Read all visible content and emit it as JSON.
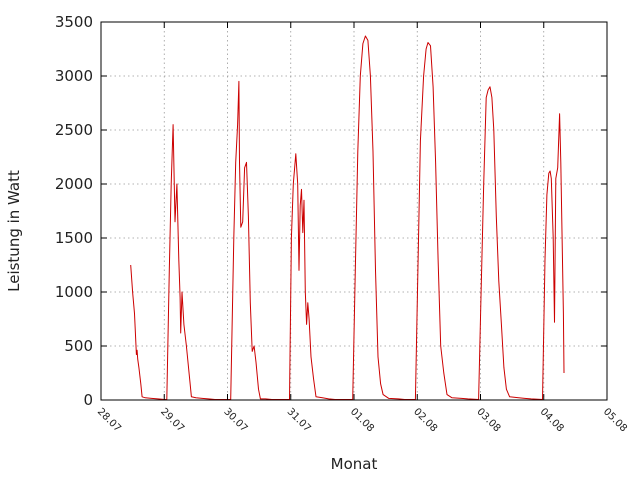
{
  "chart_data": {
    "type": "line",
    "title": "",
    "xlabel": "Monat",
    "ylabel": "Leistung in Watt",
    "ylim": [
      0,
      3500
    ],
    "xlim": [
      0,
      8
    ],
    "yticks": [
      0,
      500,
      1000,
      1500,
      2000,
      2500,
      3000,
      3500
    ],
    "xticks": [
      {
        "value": 0,
        "label": "28.07"
      },
      {
        "value": 1,
        "label": "29.07"
      },
      {
        "value": 2,
        "label": "30.07"
      },
      {
        "value": 3,
        "label": "31.07"
      },
      {
        "value": 4,
        "label": "01.08"
      },
      {
        "value": 5,
        "label": "02.08"
      },
      {
        "value": 6,
        "label": "03.08"
      },
      {
        "value": 7,
        "label": "04.08"
      },
      {
        "value": 8,
        "label": "05.08"
      }
    ],
    "grid": true,
    "line_color": "#cc0000",
    "series": [
      {
        "points": [
          [
            0.47,
            1250
          ],
          [
            0.5,
            1000
          ],
          [
            0.53,
            800
          ],
          [
            0.56,
            420
          ],
          [
            0.57,
            460
          ],
          [
            0.58,
            380
          ],
          [
            0.6,
            300
          ],
          [
            0.63,
            150
          ],
          [
            0.65,
            30
          ],
          [
            0.7,
            20
          ],
          [
            0.8,
            15
          ],
          [
            0.9,
            10
          ],
          [
            1.0,
            5
          ],
          [
            1.04,
            5
          ],
          [
            1.08,
            1200
          ],
          [
            1.11,
            2000
          ],
          [
            1.14,
            2550
          ],
          [
            1.17,
            1650
          ],
          [
            1.2,
            2000
          ],
          [
            1.23,
            1300
          ],
          [
            1.25,
            950
          ],
          [
            1.26,
            620
          ],
          [
            1.28,
            1000
          ],
          [
            1.31,
            700
          ],
          [
            1.35,
            500
          ],
          [
            1.4,
            200
          ],
          [
            1.43,
            30
          ],
          [
            1.5,
            20
          ],
          [
            1.6,
            15
          ],
          [
            1.7,
            10
          ],
          [
            1.8,
            5
          ],
          [
            2.05,
            5
          ],
          [
            2.1,
            1500
          ],
          [
            2.13,
            2200
          ],
          [
            2.16,
            2550
          ],
          [
            2.18,
            2950
          ],
          [
            2.19,
            2200
          ],
          [
            2.21,
            1600
          ],
          [
            2.24,
            1650
          ],
          [
            2.27,
            2150
          ],
          [
            2.3,
            2200
          ],
          [
            2.33,
            1700
          ],
          [
            2.36,
            900
          ],
          [
            2.39,
            450
          ],
          [
            2.42,
            500
          ],
          [
            2.45,
            350
          ],
          [
            2.49,
            100
          ],
          [
            2.52,
            10
          ],
          [
            2.6,
            10
          ],
          [
            2.7,
            5
          ],
          [
            2.98,
            5
          ],
          [
            3.01,
            1500
          ],
          [
            3.04,
            2000
          ],
          [
            3.08,
            2280
          ],
          [
            3.11,
            2000
          ],
          [
            3.13,
            1200
          ],
          [
            3.15,
            1800
          ],
          [
            3.17,
            1950
          ],
          [
            3.19,
            1550
          ],
          [
            3.21,
            1850
          ],
          [
            3.23,
            1000
          ],
          [
            3.25,
            700
          ],
          [
            3.27,
            900
          ],
          [
            3.29,
            750
          ],
          [
            3.32,
            400
          ],
          [
            3.36,
            200
          ],
          [
            3.4,
            30
          ],
          [
            3.5,
            20
          ],
          [
            3.6,
            10
          ],
          [
            3.7,
            5
          ],
          [
            3.98,
            5
          ],
          [
            4.02,
            1200
          ],
          [
            4.06,
            2300
          ],
          [
            4.1,
            3000
          ],
          [
            4.14,
            3300
          ],
          [
            4.18,
            3370
          ],
          [
            4.22,
            3330
          ],
          [
            4.26,
            3000
          ],
          [
            4.3,
            2300
          ],
          [
            4.34,
            1200
          ],
          [
            4.38,
            400
          ],
          [
            4.42,
            150
          ],
          [
            4.46,
            50
          ],
          [
            4.55,
            15
          ],
          [
            4.7,
            10
          ],
          [
            4.8,
            5
          ],
          [
            4.97,
            5
          ],
          [
            5.01,
            1200
          ],
          [
            5.05,
            2400
          ],
          [
            5.1,
            3000
          ],
          [
            5.14,
            3250
          ],
          [
            5.17,
            3310
          ],
          [
            5.21,
            3280
          ],
          [
            5.25,
            2900
          ],
          [
            5.29,
            2200
          ],
          [
            5.33,
            1300
          ],
          [
            5.37,
            500
          ],
          [
            5.42,
            250
          ],
          [
            5.47,
            50
          ],
          [
            5.55,
            20
          ],
          [
            5.7,
            15
          ],
          [
            5.8,
            10
          ],
          [
            5.97,
            5
          ],
          [
            6.01,
            1000
          ],
          [
            6.05,
            2000
          ],
          [
            6.09,
            2800
          ],
          [
            6.12,
            2870
          ],
          [
            6.15,
            2900
          ],
          [
            6.18,
            2800
          ],
          [
            6.21,
            2500
          ],
          [
            6.25,
            1700
          ],
          [
            6.29,
            1100
          ],
          [
            6.33,
            700
          ],
          [
            6.37,
            300
          ],
          [
            6.41,
            100
          ],
          [
            6.46,
            30
          ],
          [
            6.6,
            20
          ],
          [
            6.7,
            15
          ],
          [
            6.8,
            10
          ],
          [
            6.98,
            5
          ],
          [
            7.02,
            1300
          ],
          [
            7.05,
            1900
          ],
          [
            7.08,
            2100
          ],
          [
            7.1,
            2120
          ],
          [
            7.12,
            2050
          ],
          [
            7.15,
            1500
          ],
          [
            7.17,
            720
          ],
          [
            7.19,
            2050
          ],
          [
            7.22,
            2150
          ],
          [
            7.25,
            2650
          ],
          [
            7.27,
            2200
          ],
          [
            7.29,
            1500
          ],
          [
            7.31,
            800
          ],
          [
            7.32,
            250
          ]
        ]
      }
    ]
  }
}
